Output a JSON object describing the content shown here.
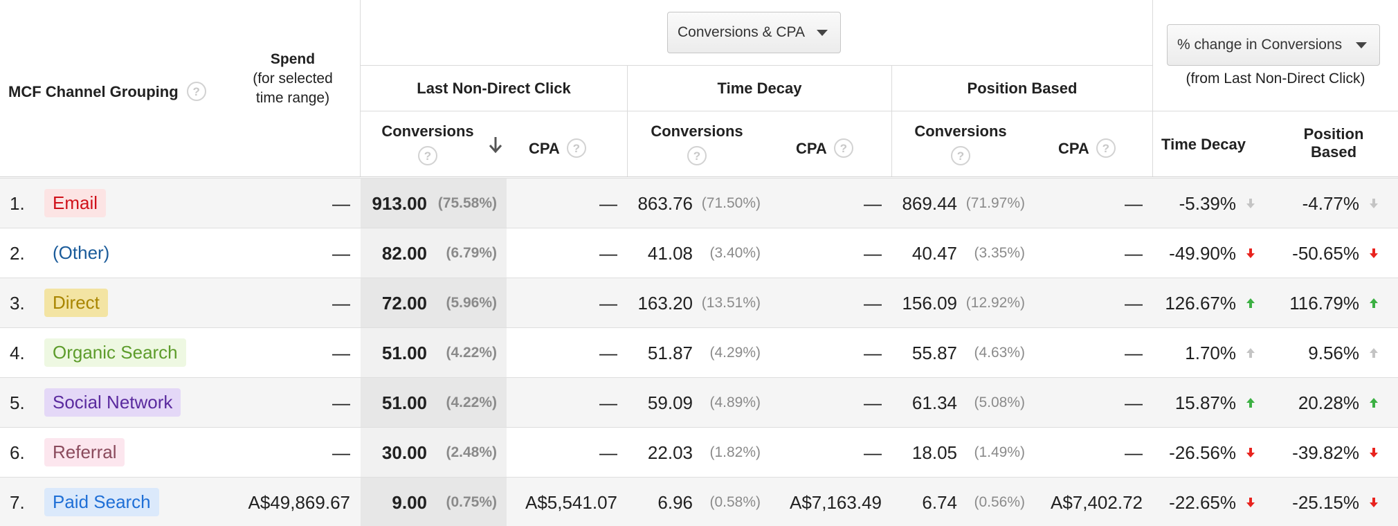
{
  "header": {
    "channel_grouping": "MCF Channel Grouping",
    "spend_line1": "Spend",
    "spend_line2": "(for selected",
    "spend_line3": "time range)",
    "metric_dropdown": "Conversions & CPA",
    "change_dropdown": "% change in Conversions",
    "change_note": "(from Last Non-Direct Click)",
    "model_last": "Last Non-Direct Click",
    "model_decay": "Time Decay",
    "model_position": "Position Based",
    "sub_conversions": "Conversions",
    "sub_cpa": "CPA",
    "sub_time_decay": "Time Decay",
    "sub_position_line1": "Position",
    "sub_position_line2": "Based",
    "help_glyph": "?"
  },
  "colors": {
    "up": "#3cb043",
    "down": "#e8231e",
    "neutral": "#c4c4c4"
  },
  "rows": [
    {
      "idx": "1.",
      "channel": "Email",
      "chip_bg": "#fce4e4",
      "chip_fg": "#d0111a",
      "spend": "—",
      "lndc_conv": "913.00",
      "lndc_pct": "(75.58%)",
      "lndc_cpa": "—",
      "td_conv": "863.76",
      "td_pct": "(71.50%)",
      "td_cpa": "—",
      "pb_conv": "869.44",
      "pb_pct": "(71.97%)",
      "pb_cpa": "—",
      "chg_td": "-5.39%",
      "chg_td_dir": "neutral-down",
      "chg_pb": "-4.77%",
      "chg_pb_dir": "neutral-down"
    },
    {
      "idx": "2.",
      "channel": "(Other)",
      "chip_bg": "transparent",
      "chip_fg": "#1a5b9a",
      "spend": "—",
      "lndc_conv": "82.00",
      "lndc_pct": "(6.79%)",
      "lndc_cpa": "—",
      "td_conv": "41.08",
      "td_pct": "(3.40%)",
      "td_cpa": "—",
      "pb_conv": "40.47",
      "pb_pct": "(3.35%)",
      "pb_cpa": "—",
      "chg_td": "-49.90%",
      "chg_td_dir": "down",
      "chg_pb": "-50.65%",
      "chg_pb_dir": "down"
    },
    {
      "idx": "3.",
      "channel": "Direct",
      "chip_bg": "#f3e4a3",
      "chip_fg": "#a88500",
      "spend": "—",
      "lndc_conv": "72.00",
      "lndc_pct": "(5.96%)",
      "lndc_cpa": "—",
      "td_conv": "163.20",
      "td_pct": "(13.51%)",
      "td_cpa": "—",
      "pb_conv": "156.09",
      "pb_pct": "(12.92%)",
      "pb_cpa": "—",
      "chg_td": "126.67%",
      "chg_td_dir": "up",
      "chg_pb": "116.79%",
      "chg_pb_dir": "up"
    },
    {
      "idx": "4.",
      "channel": "Organic Search",
      "chip_bg": "#eef8e2",
      "chip_fg": "#5d9c2b",
      "spend": "—",
      "lndc_conv": "51.00",
      "lndc_pct": "(4.22%)",
      "lndc_cpa": "—",
      "td_conv": "51.87",
      "td_pct": "(4.29%)",
      "td_cpa": "—",
      "pb_conv": "55.87",
      "pb_pct": "(4.63%)",
      "pb_cpa": "—",
      "chg_td": "1.70%",
      "chg_td_dir": "neutral-up",
      "chg_pb": "9.56%",
      "chg_pb_dir": "neutral-up"
    },
    {
      "idx": "5.",
      "channel": "Social Network",
      "chip_bg": "#e4d8f7",
      "chip_fg": "#5a2a9e",
      "spend": "—",
      "lndc_conv": "51.00",
      "lndc_pct": "(4.22%)",
      "lndc_cpa": "—",
      "td_conv": "59.09",
      "td_pct": "(4.89%)",
      "td_cpa": "—",
      "pb_conv": "61.34",
      "pb_pct": "(5.08%)",
      "pb_cpa": "—",
      "chg_td": "15.87%",
      "chg_td_dir": "up",
      "chg_pb": "20.28%",
      "chg_pb_dir": "up"
    },
    {
      "idx": "6.",
      "channel": "Referral",
      "chip_bg": "#fce6ee",
      "chip_fg": "#8a4a5c",
      "spend": "—",
      "lndc_conv": "30.00",
      "lndc_pct": "(2.48%)",
      "lndc_cpa": "—",
      "td_conv": "22.03",
      "td_pct": "(1.82%)",
      "td_cpa": "—",
      "pb_conv": "18.05",
      "pb_pct": "(1.49%)",
      "pb_cpa": "—",
      "chg_td": "-26.56%",
      "chg_td_dir": "down",
      "chg_pb": "-39.82%",
      "chg_pb_dir": "down"
    },
    {
      "idx": "7.",
      "channel": "Paid Search",
      "chip_bg": "#dbe9fb",
      "chip_fg": "#1f6fd6",
      "spend": "A$49,869.67",
      "lndc_conv": "9.00",
      "lndc_pct": "(0.75%)",
      "lndc_cpa": "A$5,541.07",
      "td_conv": "6.96",
      "td_pct": "(0.58%)",
      "td_cpa": "A$7,163.49",
      "pb_conv": "6.74",
      "pb_pct": "(0.56%)",
      "pb_cpa": "A$7,402.72",
      "chg_td": "-22.65%",
      "chg_td_dir": "down",
      "chg_pb": "-25.15%",
      "chg_pb_dir": "down"
    }
  ]
}
